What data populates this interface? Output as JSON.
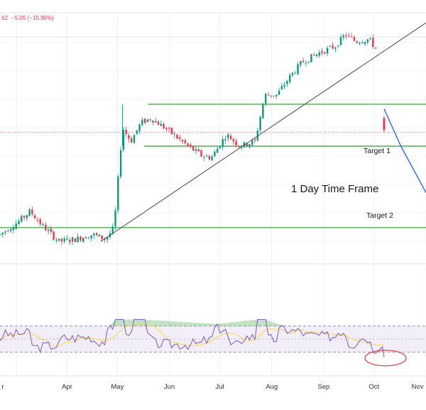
{
  "header": {
    "change_prefix": ".62",
    "change_value": "−5.05 (−15.95%)"
  },
  "annotations": {
    "target_1": "Target 1",
    "target_2": "Target 2",
    "timeframe": "1 Day Time Frame"
  },
  "colors": {
    "up": "#089981",
    "down": "#f23645",
    "level_line": "#4caf50",
    "trend_line": "#444444",
    "projection": "#2962ff",
    "rsi_line": "#7e57c2",
    "rsi_ma": "#fdd835",
    "rsi_band": "#ede7f6",
    "highlight_circle": "#f23645"
  },
  "chart_data": {
    "type": "candlestick",
    "timeframe": "1 Day",
    "x_axis": {
      "labels": [
        "r",
        "Apr",
        "May",
        "Jun",
        "Jul",
        "Aug",
        "Sep",
        "Oct",
        "Nov"
      ],
      "range_days": [
        -40,
        214
      ]
    },
    "price_axis": {
      "visible_labels": false,
      "scale_note": "relative units, 0 = bottom of price pane, 100 = top"
    },
    "price_path": [
      [
        -40,
        12
      ],
      [
        -30,
        17
      ],
      [
        -22,
        22
      ],
      [
        -15,
        16
      ],
      [
        -5,
        9
      ],
      [
        5,
        10
      ],
      [
        15,
        12
      ],
      [
        23,
        10
      ],
      [
        28,
        15
      ],
      [
        33,
        58
      ],
      [
        38,
        52
      ],
      [
        44,
        60
      ],
      [
        50,
        62
      ],
      [
        58,
        58
      ],
      [
        65,
        54
      ],
      [
        72,
        50
      ],
      [
        80,
        46
      ],
      [
        86,
        45
      ],
      [
        95,
        55
      ],
      [
        103,
        50
      ],
      [
        112,
        52
      ],
      [
        118,
        72
      ],
      [
        125,
        72
      ],
      [
        133,
        80
      ],
      [
        140,
        86
      ],
      [
        150,
        90
      ],
      [
        160,
        93
      ],
      [
        166,
        98
      ],
      [
        172,
        95
      ],
      [
        180,
        96
      ],
      [
        184,
        92
      ]
    ],
    "last_candle": {
      "day": 189,
      "open": 62,
      "close": 57
    },
    "levels": [
      {
        "name": "resistance_upper",
        "value": 68,
        "from_day": 48
      },
      {
        "name": "Target 1",
        "value": 50,
        "from_day": 46
      },
      {
        "name": "Target 2",
        "value": 15,
        "from_day": -40
      }
    ],
    "trendline": [
      [
        20,
        9
      ],
      [
        214,
        103
      ]
    ],
    "projection": [
      [
        189,
        66
      ],
      [
        199,
        50
      ],
      [
        214,
        30
      ]
    ],
    "rsi": {
      "overbought": 70,
      "oversold": 30,
      "last_value": 22,
      "signal": "oversold dip circled"
    }
  }
}
